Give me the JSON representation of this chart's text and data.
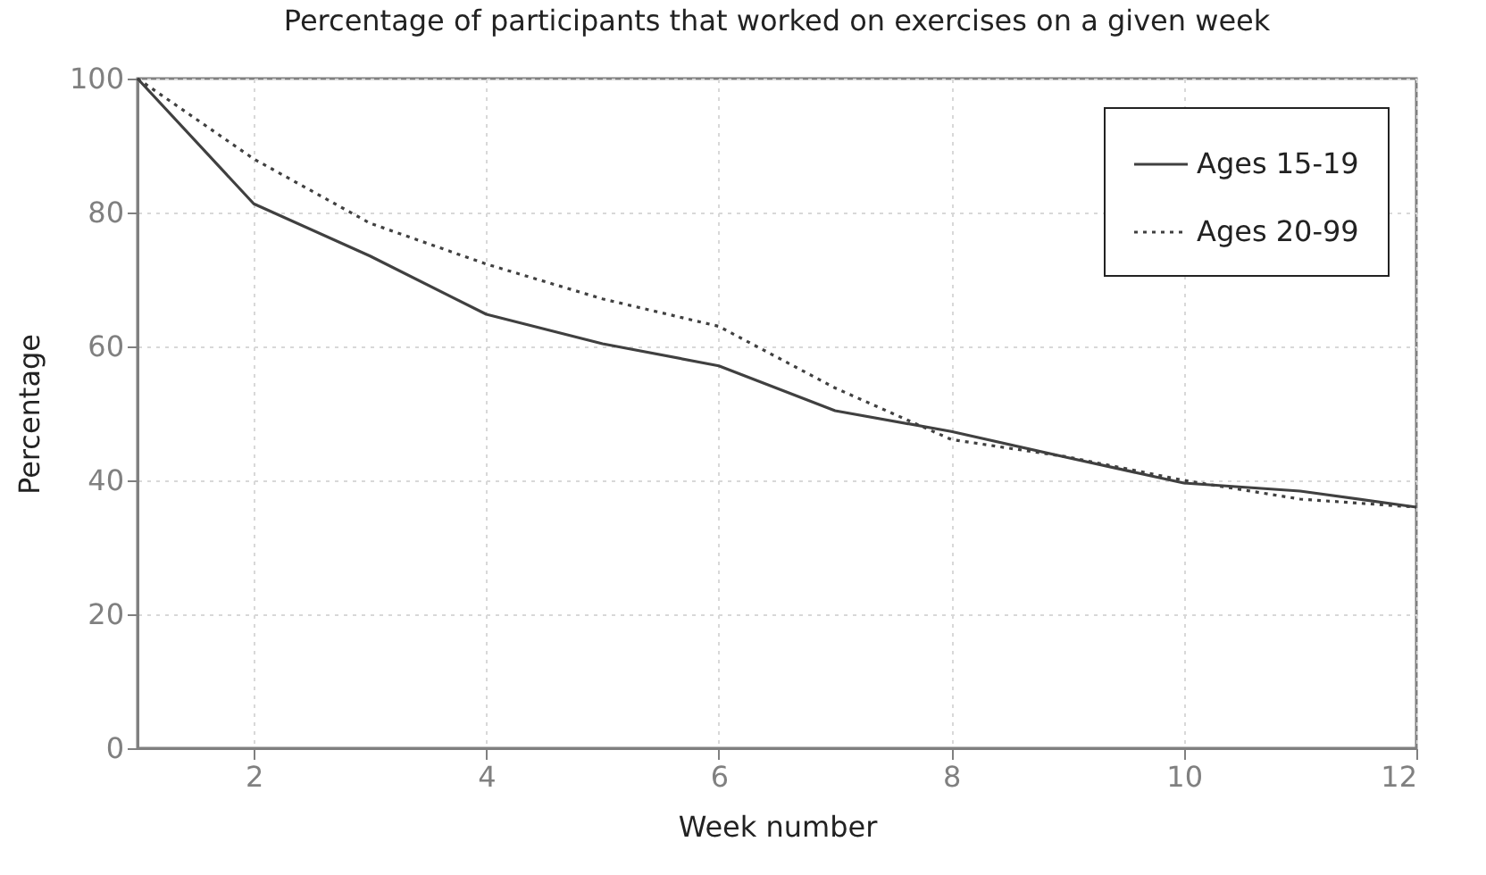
{
  "chart_data": {
    "type": "line",
    "title": "Percentage of participants that worked on exercises on a given week",
    "xlabel": "Week number",
    "ylabel": "Percentage",
    "x": [
      1,
      2,
      3,
      4,
      5,
      6,
      7,
      8,
      9,
      10,
      11,
      12
    ],
    "series": [
      {
        "name": "Ages 15-19",
        "color": "#404040",
        "line_style": "solid",
        "values": [
          100,
          81.3,
          73.5,
          64.8,
          60.4,
          57.1,
          50.4,
          47.3,
          43.4,
          39.6,
          38.4,
          36
        ]
      },
      {
        "name": "Ages 20-99",
        "color": "#404040",
        "line_style": "dotted",
        "values": [
          100,
          88,
          78.4,
          72.3,
          67.1,
          63,
          53.8,
          46.1,
          43.5,
          40,
          37.2,
          36
        ]
      }
    ],
    "xlim": [
      1,
      12
    ],
    "xticks": [
      2,
      4,
      6,
      8,
      10,
      12
    ],
    "ylim": [
      0,
      100
    ],
    "yticks": [
      0,
      20,
      40,
      60,
      80,
      100
    ],
    "grid": true,
    "legend": "top right",
    "marker": "none"
  }
}
